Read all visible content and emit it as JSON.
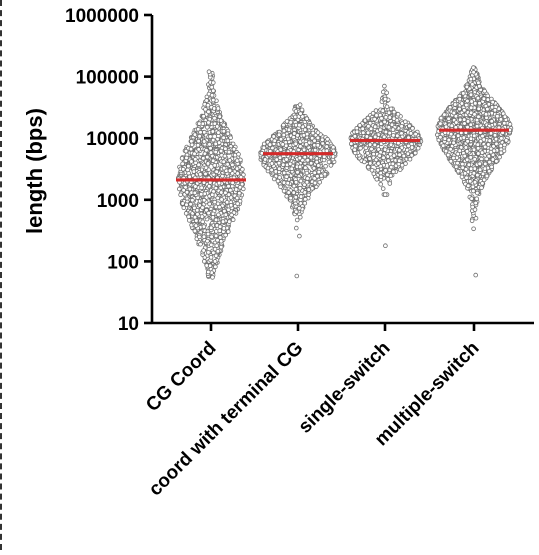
{
  "chart_data": {
    "type": "scatter",
    "subtype": "beeswarm-dot-plot-with-median",
    "title": "",
    "xlabel": "",
    "ylabel": "length (bps)",
    "y_scale": "log",
    "ylim": [
      10,
      1000000
    ],
    "y_ticks": [
      "10",
      "100",
      "1000",
      "10000",
      "100000",
      "1000000"
    ],
    "grid": false,
    "legend": "none",
    "categories": [
      "CG Coord",
      "coord with terminal CG",
      "single-switch",
      "multiple-switch"
    ],
    "medians": [
      2100,
      5600,
      9200,
      13500
    ],
    "distributions": [
      {
        "category": "CG Coord",
        "min": 55,
        "q1": 750,
        "median": 2100,
        "q3": 5500,
        "max": 120000
      },
      {
        "category": "coord with terminal CG",
        "min": 58,
        "q1": 3000,
        "median": 5600,
        "q3": 9000,
        "max": 35000
      },
      {
        "category": "single-switch",
        "min": 180,
        "q1": 5500,
        "median": 9200,
        "q3": 14000,
        "max": 70000
      },
      {
        "category": "multiple-switch",
        "min": 60,
        "q1": 6500,
        "median": 13500,
        "q3": 24000,
        "max": 140000
      }
    ],
    "colors": {
      "points": "#6e6e6e",
      "median": "#d42a2a",
      "axis": "#000000"
    }
  }
}
